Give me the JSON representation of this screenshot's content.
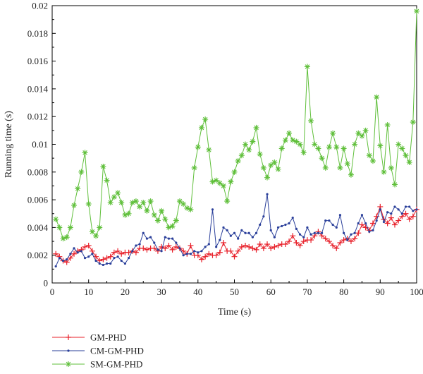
{
  "chart_data": {
    "type": "line",
    "title": "",
    "xlabel": "Time (s)",
    "ylabel": "Running time (s)",
    "xlim": [
      0,
      100
    ],
    "ylim": [
      0,
      0.02
    ],
    "x_ticks": [
      "0",
      "10",
      "20",
      "30",
      "40",
      "50",
      "60",
      "70",
      "80",
      "90",
      "100"
    ],
    "y_ticks": [
      "0",
      "0.002",
      "0.004",
      "0.006",
      "0.008",
      "0.01",
      "0.012",
      "0.014",
      "0.016",
      "0.018",
      "0.02"
    ],
    "grid": false,
    "legend_position": "bottom-left",
    "x": [
      1,
      2,
      3,
      4,
      5,
      6,
      7,
      8,
      9,
      10,
      11,
      12,
      13,
      14,
      15,
      16,
      17,
      18,
      19,
      20,
      21,
      22,
      23,
      24,
      25,
      26,
      27,
      28,
      29,
      30,
      31,
      32,
      33,
      34,
      35,
      36,
      37,
      38,
      39,
      40,
      41,
      42,
      43,
      44,
      45,
      46,
      47,
      48,
      49,
      50,
      51,
      52,
      53,
      54,
      55,
      56,
      57,
      58,
      59,
      60,
      61,
      62,
      63,
      64,
      65,
      66,
      67,
      68,
      69,
      70,
      71,
      72,
      73,
      74,
      75,
      76,
      77,
      78,
      79,
      80,
      81,
      82,
      83,
      84,
      85,
      86,
      87,
      88,
      89,
      90,
      91,
      92,
      93,
      94,
      95,
      96,
      97,
      98,
      99,
      100
    ],
    "series": [
      {
        "name": "GM-PHD",
        "color": "#e8202a",
        "marker": "plus",
        "values": [
          0.0021,
          0.0019,
          0.0016,
          0.0015,
          0.0018,
          0.0021,
          0.0023,
          0.0024,
          0.0026,
          0.0027,
          0.0023,
          0.0019,
          0.0016,
          0.0017,
          0.0018,
          0.0019,
          0.0022,
          0.0023,
          0.0021,
          0.0022,
          0.0022,
          0.0023,
          0.0022,
          0.0025,
          0.0025,
          0.0024,
          0.0025,
          0.0025,
          0.0023,
          0.0026,
          0.0025,
          0.0027,
          0.0024,
          0.0026,
          0.0025,
          0.0023,
          0.0021,
          0.0027,
          0.002,
          0.002,
          0.0017,
          0.0019,
          0.0021,
          0.002,
          0.002,
          0.0022,
          0.0029,
          0.0023,
          0.0023,
          0.0019,
          0.0023,
          0.0026,
          0.0027,
          0.0026,
          0.0025,
          0.0024,
          0.0028,
          0.0025,
          0.0028,
          0.0025,
          0.0026,
          0.0027,
          0.0028,
          0.0028,
          0.003,
          0.0034,
          0.0029,
          0.0027,
          0.003,
          0.0031,
          0.0031,
          0.0034,
          0.0037,
          0.0034,
          0.0032,
          0.003,
          0.0027,
          0.0025,
          0.0029,
          0.0031,
          0.0032,
          0.003,
          0.0032,
          0.0036,
          0.0042,
          0.004,
          0.0038,
          0.0043,
          0.0048,
          0.0055,
          0.0046,
          0.0043,
          0.0047,
          0.0042,
          0.0045,
          0.0048,
          0.005,
          0.0046,
          0.0048,
          0.0053
        ]
      },
      {
        "name": "CM-GM-PHD",
        "color": "#2a3f9a",
        "marker": "dot",
        "values": [
          0.0012,
          0.0018,
          0.0016,
          0.0017,
          0.0021,
          0.0025,
          0.0022,
          0.0023,
          0.0018,
          0.0019,
          0.0021,
          0.0016,
          0.0014,
          0.0013,
          0.0014,
          0.0014,
          0.0018,
          0.0019,
          0.0016,
          0.0014,
          0.0018,
          0.0023,
          0.0027,
          0.0028,
          0.0036,
          0.0032,
          0.0033,
          0.0029,
          0.0024,
          0.0023,
          0.0033,
          0.0032,
          0.0032,
          0.0029,
          0.0025,
          0.002,
          0.0021,
          0.0021,
          0.0023,
          0.0022,
          0.0023,
          0.0026,
          0.0028,
          0.0053,
          0.0026,
          0.0031,
          0.004,
          0.0038,
          0.0034,
          0.0036,
          0.0032,
          0.0038,
          0.0036,
          0.0036,
          0.0033,
          0.0036,
          0.0042,
          0.0048,
          0.0064,
          0.0038,
          0.0033,
          0.004,
          0.0041,
          0.0042,
          0.0043,
          0.0047,
          0.0039,
          0.0035,
          0.0033,
          0.004,
          0.0035,
          0.0036,
          0.0036,
          0.0036,
          0.0045,
          0.0045,
          0.0042,
          0.004,
          0.0049,
          0.0036,
          0.0031,
          0.0035,
          0.0036,
          0.0043,
          0.0049,
          0.0043,
          0.0037,
          0.0038,
          0.0045,
          0.0053,
          0.0044,
          0.0051,
          0.005,
          0.0055,
          0.0053,
          0.005,
          0.0055,
          0.0055,
          0.0052,
          0.0053
        ]
      },
      {
        "name": "SM-GM-PHD",
        "color": "#5fbf3a",
        "marker": "asterisk",
        "values": [
          0.0046,
          0.004,
          0.0032,
          0.0033,
          0.004,
          0.0056,
          0.0068,
          0.008,
          0.0094,
          0.0057,
          0.0037,
          0.0034,
          0.004,
          0.0084,
          0.0074,
          0.0058,
          0.0062,
          0.0065,
          0.0058,
          0.0049,
          0.005,
          0.0058,
          0.0059,
          0.0055,
          0.0058,
          0.0052,
          0.0059,
          0.0049,
          0.0045,
          0.0052,
          0.0046,
          0.004,
          0.0041,
          0.0045,
          0.0059,
          0.0057,
          0.0054,
          0.0053,
          0.0083,
          0.0098,
          0.0112,
          0.0118,
          0.0096,
          0.0073,
          0.0074,
          0.0072,
          0.007,
          0.0059,
          0.0073,
          0.008,
          0.0088,
          0.0092,
          0.01,
          0.0096,
          0.0102,
          0.0112,
          0.0093,
          0.0083,
          0.0076,
          0.0085,
          0.0087,
          0.0082,
          0.0097,
          0.0103,
          0.0108,
          0.0103,
          0.0102,
          0.01,
          0.0094,
          0.0156,
          0.0117,
          0.01,
          0.0097,
          0.009,
          0.0083,
          0.0098,
          0.0108,
          0.0098,
          0.0083,
          0.0097,
          0.0086,
          0.0078,
          0.01,
          0.0108,
          0.0106,
          0.011,
          0.0092,
          0.0088,
          0.0134,
          0.0099,
          0.008,
          0.0114,
          0.0083,
          0.0071,
          0.01,
          0.0097,
          0.0092,
          0.0087,
          0.0116,
          0.0196
        ]
      }
    ]
  }
}
